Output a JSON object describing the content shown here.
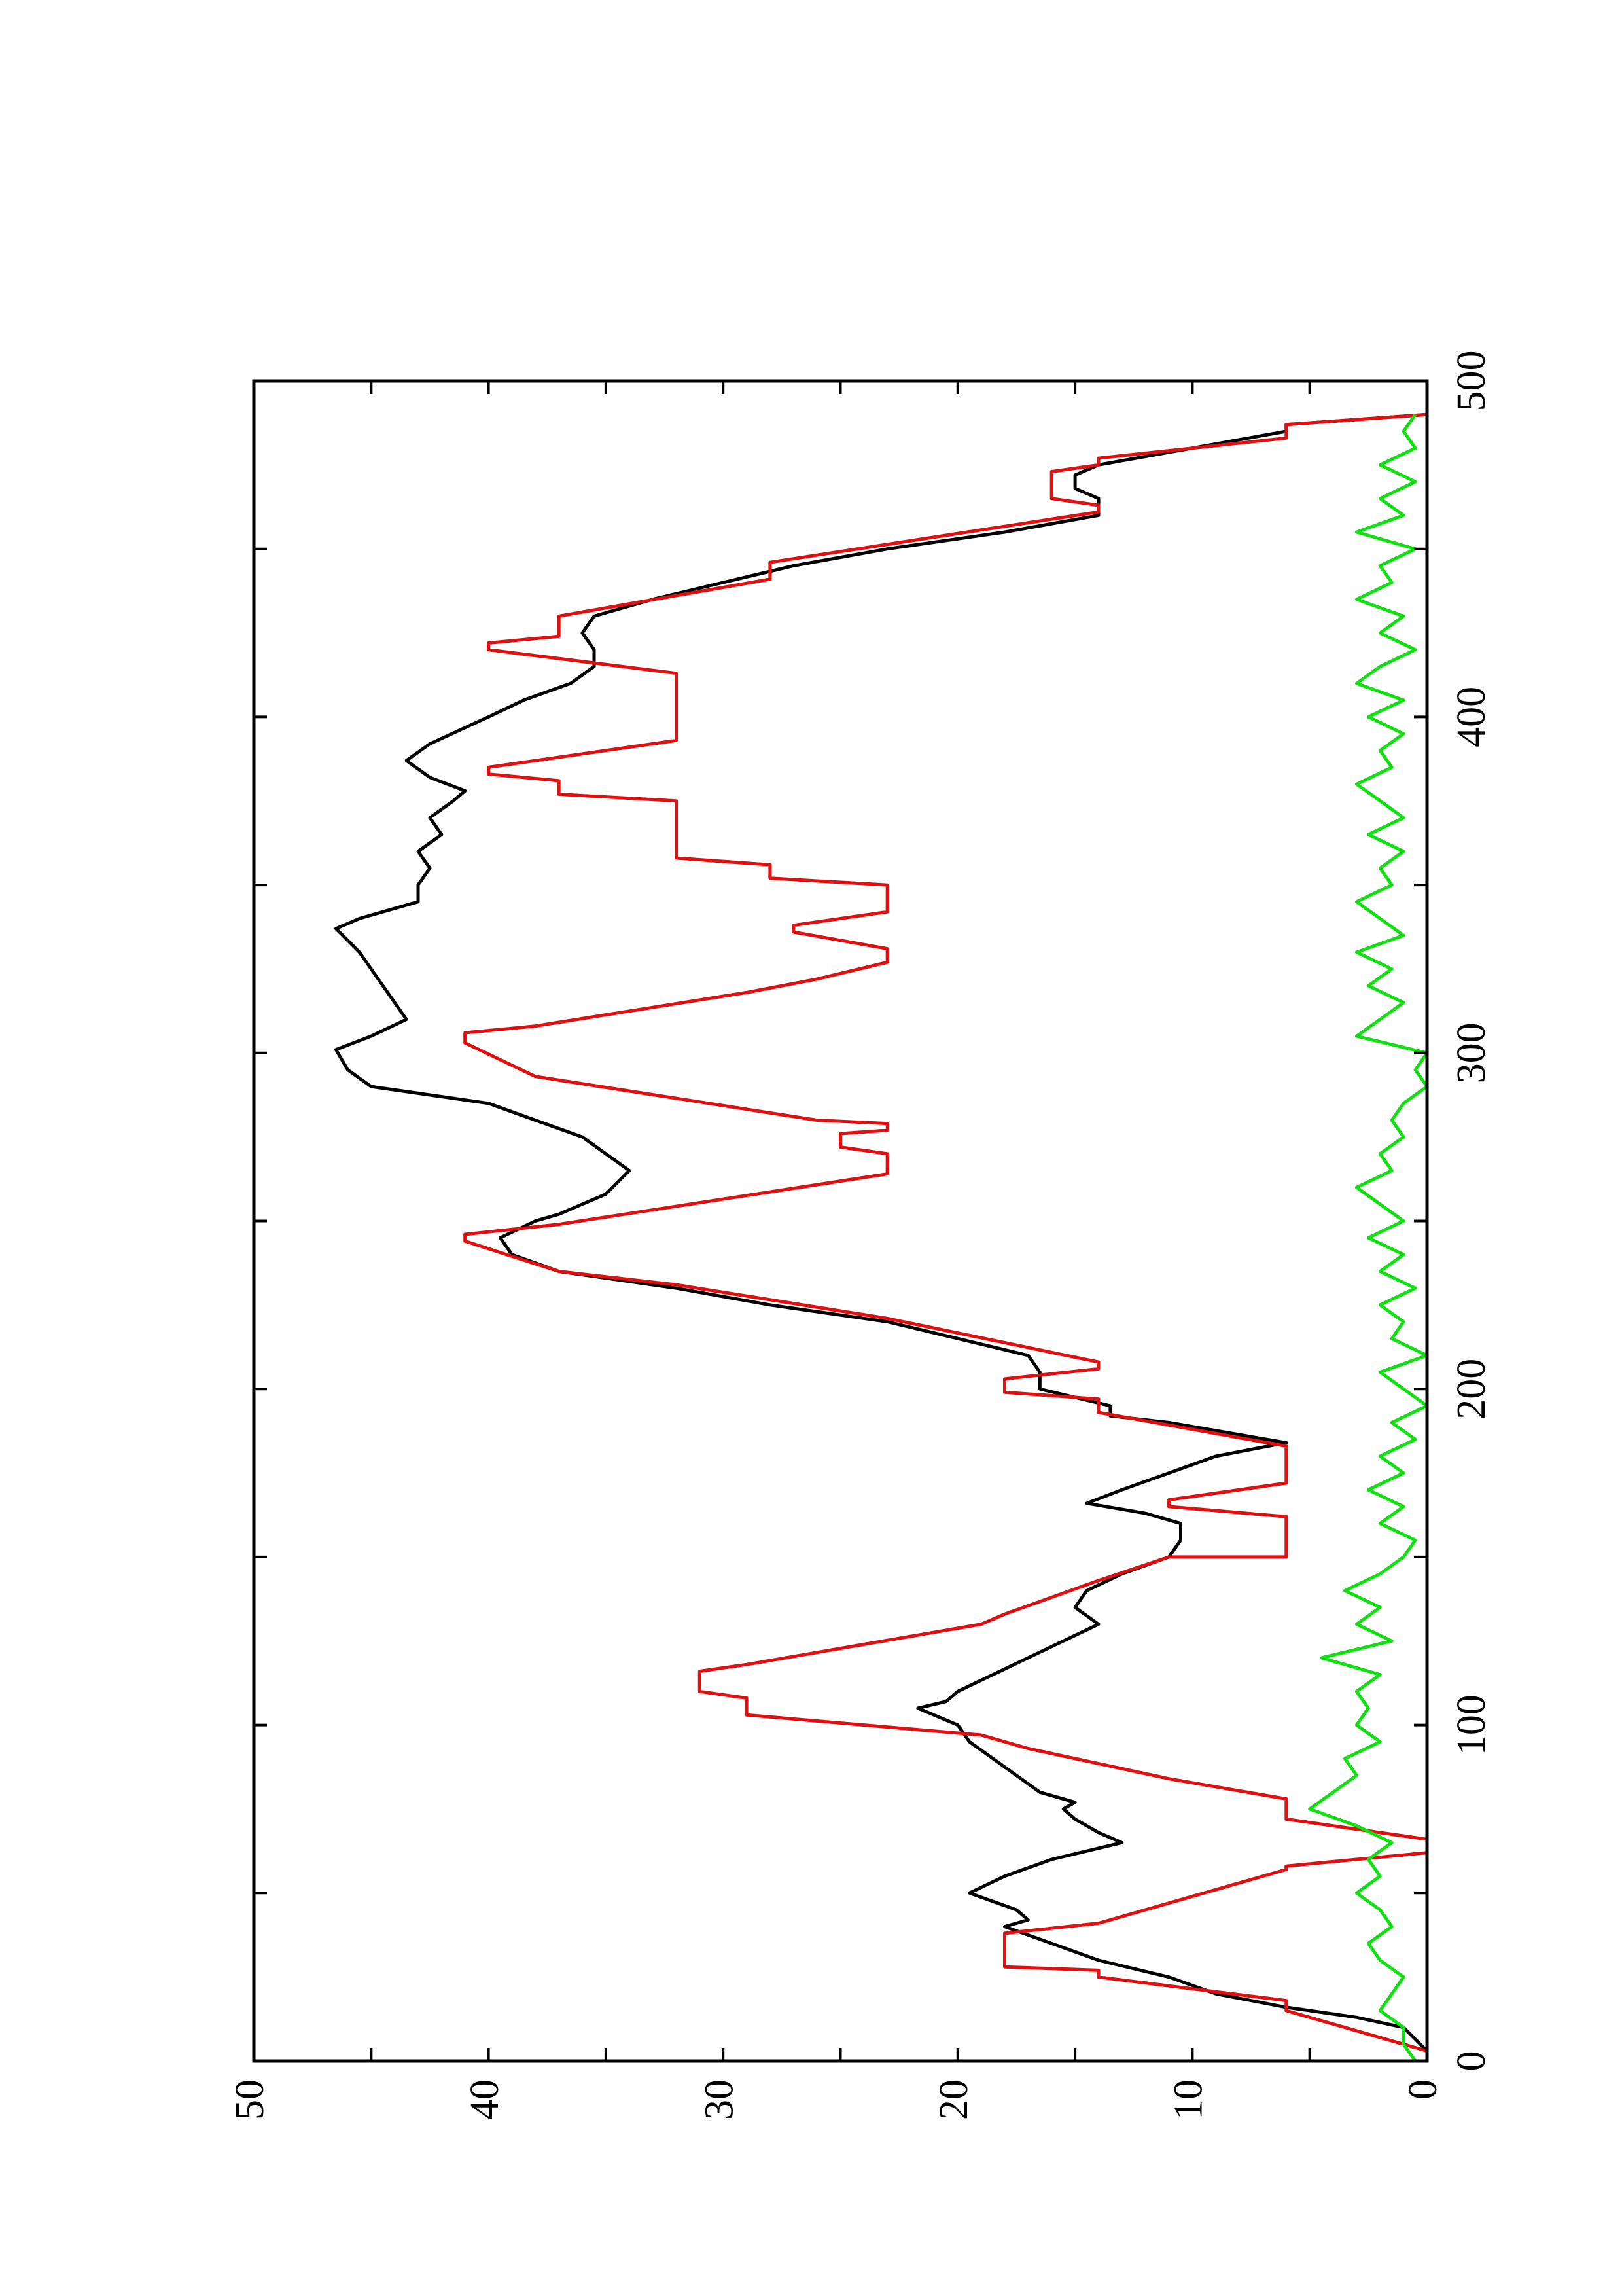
{
  "chart_data": {
    "type": "line",
    "xlim": [
      0,
      500
    ],
    "ylim": [
      0,
      50
    ],
    "xticks": [
      0,
      100,
      200,
      300,
      400,
      500
    ],
    "xticks_minor": [
      50,
      150,
      250,
      350,
      450
    ],
    "yticks": [
      0,
      10,
      20,
      30,
      40,
      50
    ],
    "yticks_minor": [
      5,
      15,
      25,
      35,
      45
    ],
    "series": [
      {
        "color": "#000000",
        "x": [
          3,
          10,
          13,
          16,
          20,
          25,
          30,
          35,
          40,
          42,
          45,
          50,
          55,
          60,
          65,
          68,
          72,
          75,
          77,
          80,
          85,
          90,
          95,
          100,
          105,
          107,
          110,
          115,
          120,
          125,
          130,
          135,
          140,
          145,
          150,
          155,
          160,
          163,
          166,
          170,
          175,
          180,
          184,
          190,
          192,
          195,
          200,
          205,
          210,
          215,
          220,
          225,
          230,
          235,
          240,
          245,
          250,
          252,
          258,
          265,
          270,
          275,
          280,
          285,
          290,
          295,
          301,
          305,
          310,
          315,
          320,
          325,
          330,
          337,
          340,
          345,
          350,
          355,
          360,
          365,
          370,
          375,
          378,
          382,
          387,
          392,
          400,
          405,
          410,
          415,
          420,
          425,
          430,
          435,
          440,
          445,
          450,
          455,
          460,
          465,
          468,
          472,
          475,
          480,
          485,
          487,
          490
        ],
        "values": [
          0,
          1,
          3,
          6,
          9,
          11,
          14,
          16,
          18,
          17,
          17.5,
          19.5,
          18,
          16,
          13,
          14,
          15,
          15.5,
          15,
          16.5,
          17.5,
          18.5,
          19.5,
          20,
          21.7,
          20.5,
          20,
          18.5,
          17,
          15.5,
          14,
          15,
          14.5,
          13,
          11,
          10.5,
          10.5,
          12,
          14.5,
          13,
          11,
          9,
          6,
          11,
          13.5,
          13.5,
          16.5,
          16.5,
          17,
          20,
          23,
          28,
          32,
          37,
          39,
          39.5,
          38,
          37,
          35,
          34,
          35,
          36,
          38,
          40,
          45,
          46,
          46.5,
          45,
          43.5,
          44,
          44.5,
          45,
          45.5,
          46.5,
          45.5,
          43,
          43,
          42.5,
          43,
          42,
          42.5,
          41.5,
          41,
          42.5,
          43.5,
          42.5,
          40,
          38.5,
          36.5,
          35.5,
          35.5,
          36,
          35.5,
          33,
          30,
          27,
          23,
          18,
          14,
          14,
          15,
          15,
          14,
          10,
          6,
          6,
          0
        ]
      },
      {
        "color": "#e01010",
        "x": [
          3,
          15,
          18,
          25,
          27,
          28,
          38,
          41,
          57,
          58,
          62,
          66,
          72,
          78,
          84,
          93,
          97,
          103,
          108,
          110,
          116,
          118,
          130,
          133,
          143,
          150,
          150,
          162,
          165,
          167,
          172,
          183,
          193,
          197,
          199,
          203,
          206,
          208,
          221,
          231,
          235,
          244,
          246,
          249,
          264,
          270,
          272,
          276,
          277,
          279,
          280,
          293,
          303,
          306,
          308,
          318,
          322,
          327,
          331,
          336,
          338,
          342,
          350,
          352,
          356,
          358,
          375,
          377,
          381,
          383,
          385,
          393,
          413,
          420,
          422,
          424,
          430,
          441,
          446,
          461,
          463,
          465,
          473,
          475,
          477,
          483,
          487,
          490
        ],
        "values": [
          0,
          6,
          6,
          14,
          14,
          18,
          18,
          14,
          6,
          6,
          0,
          0,
          6,
          6,
          11,
          17,
          19,
          29,
          29,
          31,
          31,
          29,
          19,
          18,
          14,
          11,
          6,
          6,
          11,
          11,
          6,
          6,
          14,
          14,
          18,
          18,
          14,
          14,
          23,
          32,
          37,
          41,
          41,
          37,
          23,
          23,
          25,
          25,
          23,
          23,
          26,
          38,
          41,
          41,
          38,
          29,
          26,
          23,
          23,
          27,
          27,
          23,
          23,
          28,
          28,
          32,
          32,
          37,
          37,
          40,
          40,
          32,
          32,
          40,
          40,
          37,
          37,
          28,
          28,
          14,
          14,
          16,
          16,
          14,
          14,
          6,
          6,
          0
        ]
      },
      {
        "color": "#10e010",
        "x": [
          0,
          5,
          10,
          15,
          20,
          25,
          30,
          35,
          40,
          45,
          50,
          55,
          60,
          65,
          70,
          75,
          80,
          85,
          90,
          95,
          100,
          105,
          110,
          115,
          120,
          125,
          130,
          135,
          140,
          145,
          150,
          155,
          160,
          165,
          170,
          175,
          180,
          185,
          190,
          195,
          200,
          205,
          210,
          215,
          220,
          225,
          230,
          235,
          240,
          245,
          250,
          255,
          260,
          265,
          270,
          275,
          280,
          285,
          290,
          295,
          300,
          305,
          310,
          315,
          320,
          325,
          330,
          335,
          340,
          345,
          350,
          355,
          360,
          365,
          370,
          375,
          380,
          385,
          390,
          395,
          400,
          405,
          410,
          415,
          420,
          425,
          430,
          435,
          440,
          445,
          450,
          455,
          460,
          465,
          470,
          475,
          480,
          485,
          490
        ],
        "values": [
          0.5,
          1,
          1,
          2,
          1.5,
          1,
          2,
          2.5,
          1.5,
          2,
          3,
          2,
          2.5,
          1.5,
          3,
          5,
          4,
          3,
          3.5,
          2,
          3,
          2.5,
          3,
          2,
          4.5,
          1.5,
          3,
          2,
          3.5,
          2,
          1,
          0.5,
          2,
          1,
          2.5,
          1,
          2,
          0.5,
          1.5,
          0,
          1,
          2,
          0,
          1.5,
          1,
          2,
          0.5,
          2,
          1,
          2.5,
          1,
          2,
          3,
          1.5,
          2,
          1,
          1.5,
          1,
          0,
          0.5,
          0,
          3,
          2,
          1,
          2.5,
          1.5,
          3,
          1,
          2,
          3,
          1.5,
          2,
          1,
          2.5,
          1,
          2,
          3,
          1.5,
          2,
          1,
          2.5,
          1,
          3,
          2,
          0.5,
          2,
          1,
          3,
          1.5,
          2,
          0.5,
          3,
          1,
          2,
          0.5,
          2,
          0.5,
          1,
          0.5
        ]
      }
    ]
  }
}
